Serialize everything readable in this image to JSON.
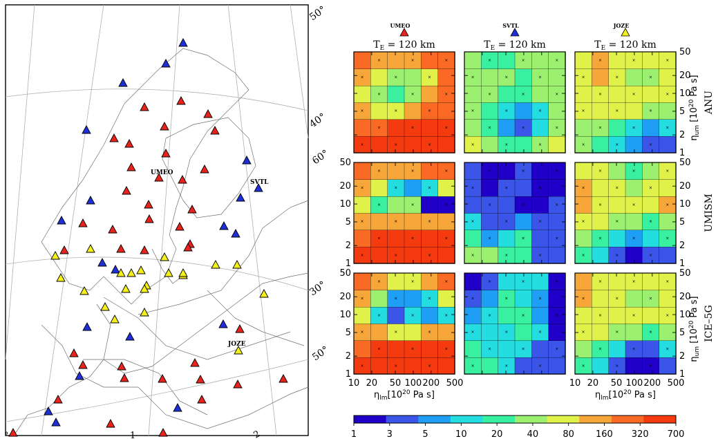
{
  "map": {
    "lat_labels": [
      "50°",
      "40°",
      "60°",
      "30°",
      "50°"
    ],
    "lon_labels": [
      "°",
      "1",
      "2"
    ],
    "markers": [
      {
        "color": "blue",
        "label": ""
      },
      {
        "color": "blue",
        "label": ""
      },
      {
        "color": "blue",
        "label": ""
      },
      {
        "color": "red",
        "label": ""
      },
      {
        "color": "red",
        "label": ""
      },
      {
        "color": "red",
        "label": ""
      },
      {
        "color": "blue",
        "label": ""
      },
      {
        "color": "red",
        "label": ""
      },
      {
        "color": "red",
        "label": ""
      },
      {
        "color": "red",
        "label": ""
      },
      {
        "color": "red",
        "label": ""
      },
      {
        "color": "red",
        "label": ""
      },
      {
        "color": "red",
        "label": ""
      },
      {
        "color": "red",
        "label": "UMEO"
      },
      {
        "color": "red",
        "label": ""
      },
      {
        "color": "blue",
        "label": ""
      },
      {
        "color": "blue",
        "label": "SVTL"
      },
      {
        "color": "red",
        "label": ""
      },
      {
        "color": "red",
        "label": ""
      },
      {
        "color": "blue",
        "label": ""
      },
      {
        "color": "red",
        "label": ""
      },
      {
        "color": "red",
        "label": ""
      },
      {
        "color": "blue",
        "label": ""
      },
      {
        "color": "red",
        "label": ""
      },
      {
        "color": "red",
        "label": ""
      },
      {
        "color": "blue",
        "label": ""
      },
      {
        "color": "red",
        "label": ""
      },
      {
        "color": "red",
        "label": ""
      },
      {
        "color": "blue",
        "label": ""
      },
      {
        "color": "yellow",
        "label": ""
      },
      {
        "color": "red",
        "label": ""
      },
      {
        "color": "red",
        "label": ""
      },
      {
        "color": "blue",
        "label": ""
      },
      {
        "color": "red",
        "label": ""
      },
      {
        "color": "red",
        "label": ""
      },
      {
        "color": "red",
        "label": ""
      },
      {
        "color": "yellow",
        "label": ""
      },
      {
        "color": "blue",
        "label": ""
      },
      {
        "color": "blue",
        "label": ""
      },
      {
        "color": "yellow",
        "label": ""
      },
      {
        "color": "yellow",
        "label": ""
      },
      {
        "color": "yellow",
        "label": ""
      },
      {
        "color": "yellow",
        "label": "JOZE"
      },
      {
        "color": "yellow",
        "label": ""
      },
      {
        "color": "yellow",
        "label": ""
      },
      {
        "color": "yellow",
        "label": ""
      },
      {
        "color": "yellow",
        "label": ""
      },
      {
        "color": "yellow",
        "label": ""
      },
      {
        "color": "yellow",
        "label": ""
      },
      {
        "color": "yellow",
        "label": ""
      },
      {
        "color": "yellow",
        "label": ""
      },
      {
        "color": "yellow",
        "label": ""
      },
      {
        "color": "yellow",
        "label": ""
      },
      {
        "color": "yellow",
        "label": ""
      },
      {
        "color": "yellow",
        "label": ""
      },
      {
        "color": "yellow",
        "label": ""
      },
      {
        "color": "yellow",
        "label": ""
      }
    ]
  },
  "panels": {
    "columns": [
      {
        "station": "UMEO",
        "marker_color": "red",
        "te_label": "T",
        "te_sub": "E",
        "te_value": " = 120 km"
      },
      {
        "station": "SVTL",
        "marker_color": "blue",
        "te_label": "T",
        "te_sub": "E",
        "te_value": " = 120 km"
      },
      {
        "station": "JOZE",
        "marker_color": "yellow",
        "te_label": "T",
        "te_sub": "E",
        "te_value": " = 120 km"
      }
    ],
    "rows": [
      "ANU",
      "UMISM",
      "ICE–5G"
    ],
    "x_axis": {
      "ticks": [
        "10",
        "20",
        "50",
        "100",
        "200",
        "500"
      ],
      "label_eta": "η",
      "label_sub": "lm",
      "label_unit": "[10",
      "label_exp": "20",
      "label_tail": " Pa s]"
    },
    "y_axis": {
      "ticks": [
        "1",
        "2",
        "5",
        "10",
        "20",
        "50"
      ],
      "label_eta": "η",
      "label_sub": "um",
      "label_unit": " [10",
      "label_exp": "20",
      "label_tail": " Pa s]"
    }
  },
  "colorbar": {
    "ticks": [
      "1",
      "3",
      "5",
      "10",
      "20",
      "40",
      "80",
      "160",
      "320",
      "700"
    ],
    "colors": [
      "#2000c8",
      "#3a55e8",
      "#1e9ef5",
      "#23dde0",
      "#38f0a0",
      "#9cf070",
      "#e0f24a",
      "#f7a63a",
      "#fb6a25",
      "#f53a10"
    ]
  },
  "chart_data": [
    {
      "type": "heatmap",
      "row": "ANU",
      "column": "UMEO",
      "x": [
        10,
        20,
        50,
        100,
        200,
        500
      ],
      "y": [
        1,
        2,
        5,
        10,
        20,
        50
      ],
      "z": [
        [
          700,
          700,
          700,
          700,
          700,
          700
        ],
        [
          320,
          320,
          700,
          700,
          700,
          700
        ],
        [
          160,
          80,
          80,
          160,
          320,
          320
        ],
        [
          80,
          40,
          20,
          40,
          160,
          320
        ],
        [
          160,
          80,
          40,
          40,
          80,
          320
        ],
        [
          320,
          160,
          160,
          160,
          320,
          320
        ]
      ]
    },
    {
      "type": "heatmap",
      "row": "ANU",
      "column": "SVTL",
      "x": [
        10,
        20,
        50,
        100,
        200,
        500
      ],
      "y": [
        1,
        2,
        5,
        10,
        20,
        50
      ],
      "z": [
        [
          80,
          40,
          20,
          20,
          40,
          80
        ],
        [
          40,
          20,
          5,
          3,
          10,
          40
        ],
        [
          40,
          20,
          10,
          5,
          10,
          40
        ],
        [
          40,
          40,
          20,
          20,
          40,
          40
        ],
        [
          40,
          40,
          40,
          20,
          40,
          40
        ],
        [
          40,
          20,
          20,
          40,
          40,
          40
        ]
      ]
    },
    {
      "type": "heatmap",
      "row": "ANU",
      "column": "JOZE",
      "x": [
        10,
        20,
        50,
        100,
        200,
        500
      ],
      "y": [
        1,
        2,
        5,
        10,
        20,
        50
      ],
      "z": [
        [
          40,
          20,
          10,
          5,
          3,
          3
        ],
        [
          40,
          40,
          20,
          10,
          5,
          10
        ],
        [
          80,
          80,
          80,
          80,
          40,
          40
        ],
        [
          80,
          80,
          80,
          80,
          80,
          80
        ],
        [
          80,
          160,
          80,
          40,
          40,
          80
        ],
        [
          80,
          160,
          80,
          80,
          80,
          80
        ]
      ]
    },
    {
      "type": "heatmap",
      "row": "UMISM",
      "column": "UMEO",
      "x": [
        10,
        20,
        50,
        100,
        200,
        500
      ],
      "y": [
        1,
        2,
        5,
        10,
        20,
        50
      ],
      "z": [
        [
          700,
          700,
          700,
          700,
          700,
          700
        ],
        [
          320,
          700,
          700,
          700,
          700,
          700
        ],
        [
          160,
          160,
          160,
          160,
          160,
          160
        ],
        [
          80,
          20,
          40,
          40,
          1,
          1
        ],
        [
          160,
          80,
          10,
          5,
          10,
          80
        ],
        [
          320,
          160,
          160,
          160,
          320,
          320
        ]
      ]
    },
    {
      "type": "heatmap",
      "row": "UMISM",
      "column": "SVTL",
      "x": [
        10,
        20,
        50,
        100,
        200,
        500
      ],
      "y": [
        1,
        2,
        5,
        10,
        20,
        50
      ],
      "z": [
        [
          40,
          40,
          20,
          20,
          3,
          3
        ],
        [
          20,
          5,
          10,
          20,
          3,
          3
        ],
        [
          10,
          3,
          3,
          5,
          3,
          3
        ],
        [
          3,
          3,
          3,
          1,
          1,
          3
        ],
        [
          3,
          1,
          3,
          3,
          1,
          1
        ],
        [
          3,
          1,
          1,
          3,
          1,
          1
        ]
      ]
    },
    {
      "type": "heatmap",
      "row": "UMISM",
      "column": "JOZE",
      "x": [
        10,
        20,
        50,
        100,
        200,
        500
      ],
      "y": [
        1,
        2,
        5,
        10,
        20,
        50
      ],
      "z": [
        [
          20,
          10,
          3,
          1,
          3,
          3
        ],
        [
          40,
          20,
          10,
          5,
          10,
          20
        ],
        [
          80,
          80,
          40,
          40,
          20,
          40
        ],
        [
          160,
          80,
          80,
          80,
          80,
          160
        ],
        [
          160,
          80,
          80,
          40,
          80,
          80
        ],
        [
          80,
          80,
          40,
          20,
          40,
          80
        ]
      ]
    },
    {
      "type": "heatmap",
      "row": "ICE–5G",
      "column": "UMEO",
      "x": [
        10,
        20,
        50,
        100,
        200,
        500
      ],
      "y": [
        1,
        2,
        5,
        10,
        20,
        50
      ],
      "z": [
        [
          700,
          700,
          700,
          700,
          700,
          700
        ],
        [
          320,
          700,
          700,
          700,
          700,
          700
        ],
        [
          160,
          160,
          80,
          80,
          160,
          160
        ],
        [
          80,
          10,
          3,
          10,
          5,
          10
        ],
        [
          160,
          40,
          5,
          5,
          10,
          80
        ],
        [
          320,
          160,
          80,
          80,
          160,
          320
        ]
      ]
    },
    {
      "type": "heatmap",
      "row": "ICE–5G",
      "column": "SVTL",
      "x": [
        10,
        20,
        50,
        100,
        200,
        500
      ],
      "y": [
        1,
        2,
        5,
        10,
        20,
        50
      ],
      "z": [
        [
          20,
          20,
          10,
          3,
          3,
          3
        ],
        [
          20,
          10,
          10,
          10,
          3,
          3
        ],
        [
          10,
          10,
          10,
          20,
          10,
          1
        ],
        [
          5,
          10,
          20,
          20,
          5,
          1
        ],
        [
          3,
          5,
          20,
          10,
          5,
          1
        ],
        [
          1,
          3,
          10,
          10,
          10,
          1
        ]
      ]
    },
    {
      "type": "heatmap",
      "row": "ICE–5G",
      "column": "JOZE",
      "x": [
        10,
        20,
        50,
        100,
        200,
        500
      ],
      "y": [
        1,
        2,
        5,
        10,
        20,
        50
      ],
      "z": [
        [
          20,
          10,
          3,
          1,
          1,
          3
        ],
        [
          40,
          20,
          10,
          3,
          3,
          10
        ],
        [
          80,
          80,
          40,
          40,
          20,
          40
        ],
        [
          80,
          80,
          80,
          80,
          80,
          80
        ],
        [
          160,
          80,
          80,
          40,
          40,
          80
        ],
        [
          160,
          80,
          80,
          80,
          80,
          80
        ]
      ]
    }
  ]
}
